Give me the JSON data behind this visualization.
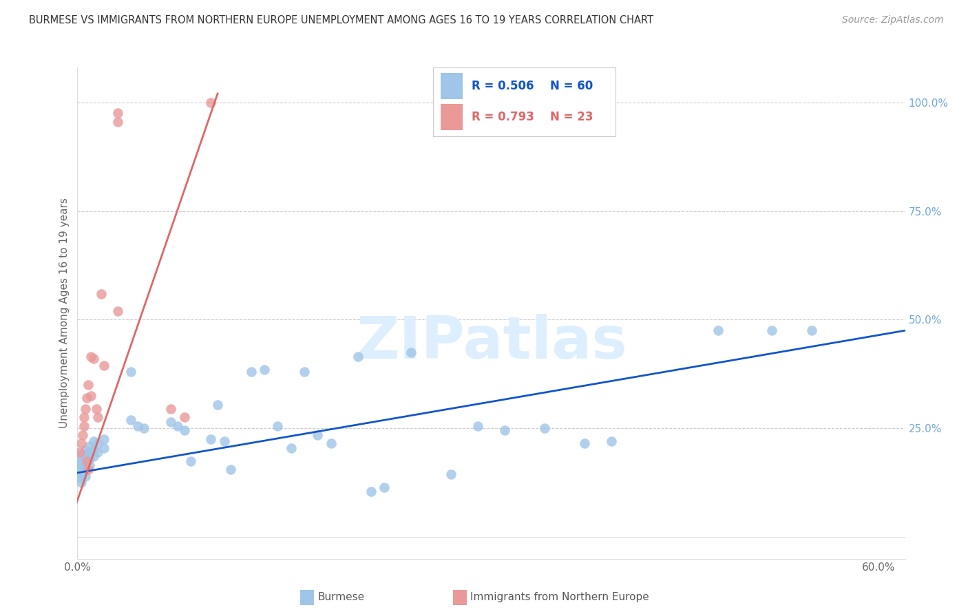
{
  "title": "BURMESE VS IMMIGRANTS FROM NORTHERN EUROPE UNEMPLOYMENT AMONG AGES 16 TO 19 YEARS CORRELATION CHART",
  "source": "Source: ZipAtlas.com",
  "ylabel": "Unemployment Among Ages 16 to 19 years",
  "xlim": [
    0.0,
    0.62
  ],
  "ylim": [
    -0.05,
    1.08
  ],
  "plot_ylim": [
    0.0,
    1.05
  ],
  "xticks": [
    0.0,
    0.1,
    0.2,
    0.3,
    0.4,
    0.5,
    0.6
  ],
  "xticklabels": [
    "0.0%",
    "",
    "",
    "",
    "",
    "",
    "60.0%"
  ],
  "yticks_right": [
    0.0,
    0.25,
    0.5,
    0.75,
    1.0
  ],
  "yticklabels_right": [
    "",
    "25.0%",
    "50.0%",
    "75.0%",
    "100.0%"
  ],
  "blue_color": "#9fc5e8",
  "pink_color": "#ea9999",
  "blue_line_color": "#1155cc",
  "pink_line_color": "#e06666",
  "right_axis_color": "#6fa8dc",
  "watermark_color": "#ddeeff",
  "burmese_x": [
    0.003,
    0.003,
    0.003,
    0.003,
    0.003,
    0.003,
    0.003,
    0.003,
    0.006,
    0.006,
    0.006,
    0.006,
    0.006,
    0.006,
    0.009,
    0.009,
    0.009,
    0.009,
    0.012,
    0.012,
    0.012,
    0.015,
    0.015,
    0.02,
    0.02,
    0.04,
    0.04,
    0.045,
    0.05,
    0.07,
    0.075,
    0.08,
    0.085,
    0.1,
    0.105,
    0.11,
    0.115,
    0.13,
    0.14,
    0.15,
    0.16,
    0.17,
    0.18,
    0.19,
    0.21,
    0.22,
    0.23,
    0.25,
    0.28,
    0.3,
    0.32,
    0.35,
    0.38,
    0.4,
    0.48,
    0.52,
    0.55
  ],
  "burmese_y": [
    0.19,
    0.18,
    0.17,
    0.165,
    0.155,
    0.145,
    0.135,
    0.125,
    0.2,
    0.19,
    0.18,
    0.17,
    0.155,
    0.14,
    0.21,
    0.195,
    0.18,
    0.165,
    0.22,
    0.2,
    0.185,
    0.215,
    0.195,
    0.225,
    0.205,
    0.38,
    0.27,
    0.255,
    0.25,
    0.265,
    0.255,
    0.245,
    0.175,
    0.225,
    0.305,
    0.22,
    0.155,
    0.38,
    0.385,
    0.255,
    0.205,
    0.38,
    0.235,
    0.215,
    0.415,
    0.105,
    0.115,
    0.425,
    0.145,
    0.255,
    0.245,
    0.25,
    0.215,
    0.22,
    0.475,
    0.475,
    0.475
  ],
  "pink_x": [
    0.002,
    0.003,
    0.004,
    0.005,
    0.005,
    0.006,
    0.007,
    0.007,
    0.008,
    0.008,
    0.01,
    0.01,
    0.012,
    0.014,
    0.015,
    0.018,
    0.02,
    0.03,
    0.03,
    0.03,
    0.07,
    0.08,
    0.1
  ],
  "pink_y": [
    0.195,
    0.215,
    0.235,
    0.255,
    0.275,
    0.295,
    0.32,
    0.175,
    0.35,
    0.155,
    0.415,
    0.325,
    0.41,
    0.295,
    0.275,
    0.56,
    0.395,
    0.955,
    0.975,
    0.52,
    0.295,
    0.275,
    1.0
  ],
  "blue_trend_x0": -0.005,
  "blue_trend_x1": 0.62,
  "blue_trend_y0": 0.145,
  "blue_trend_y1": 0.475,
  "pink_trend_x0": -0.005,
  "pink_trend_x1": 0.105,
  "pink_trend_y0": 0.04,
  "pink_trend_y1": 1.02
}
